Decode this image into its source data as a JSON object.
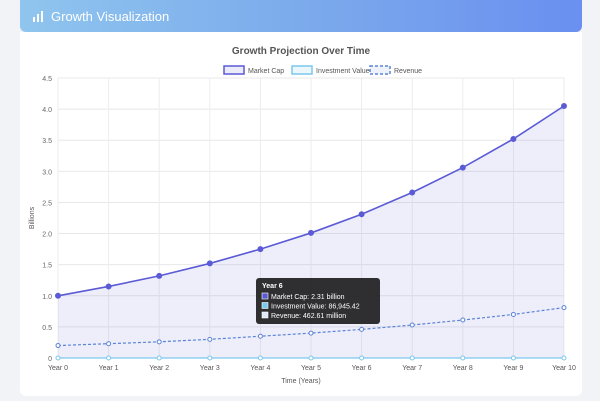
{
  "header": {
    "title": "Growth Visualization",
    "icon": "bar-chart-icon"
  },
  "chart_data": {
    "type": "line",
    "title": "Growth Projection Over Time",
    "xlabel": "Time (Years)",
    "ylabel": "Billions",
    "categories": [
      "Year 0",
      "Year 1",
      "Year 2",
      "Year 3",
      "Year 4",
      "Year 5",
      "Year 6",
      "Year 7",
      "Year 8",
      "Year 9",
      "Year 10"
    ],
    "ylim": [
      0,
      4.5
    ],
    "yticks": [
      0,
      0.5,
      1.0,
      1.5,
      2.0,
      2.5,
      3.0,
      3.5,
      4.0,
      4.5
    ],
    "ytick_labels": [
      "0",
      "0.5",
      "1.0",
      "1.5",
      "2.0",
      "2.5",
      "3.0",
      "3.5",
      "4.0",
      "4.5"
    ],
    "grid": true,
    "legend": "top-center",
    "series": [
      {
        "name": "Market Cap",
        "color": "#5b5bd6",
        "fill": "rgba(91,91,214,0.10)",
        "style": "solid",
        "values": [
          1.0,
          1.15,
          1.32,
          1.52,
          1.75,
          2.01,
          2.31,
          2.66,
          3.06,
          3.52,
          4.05
        ]
      },
      {
        "name": "Investment Value",
        "color": "#7cc7ec",
        "style": "solid",
        "values": [
          0,
          0,
          0,
          0,
          0,
          0,
          0,
          0,
          0,
          0,
          0
        ]
      },
      {
        "name": "Revenue",
        "color": "#5b84d6",
        "style": "dashed",
        "values": [
          0.2,
          0.23,
          0.26,
          0.3,
          0.35,
          0.4,
          0.46,
          0.53,
          0.61,
          0.7,
          0.81
        ]
      }
    ],
    "tooltip": {
      "title": "Year 6",
      "lines": [
        "Market Cap: 2.31 billion",
        "Investment Value: 86,945.42",
        "Revenue: 462.61 million"
      ]
    }
  }
}
